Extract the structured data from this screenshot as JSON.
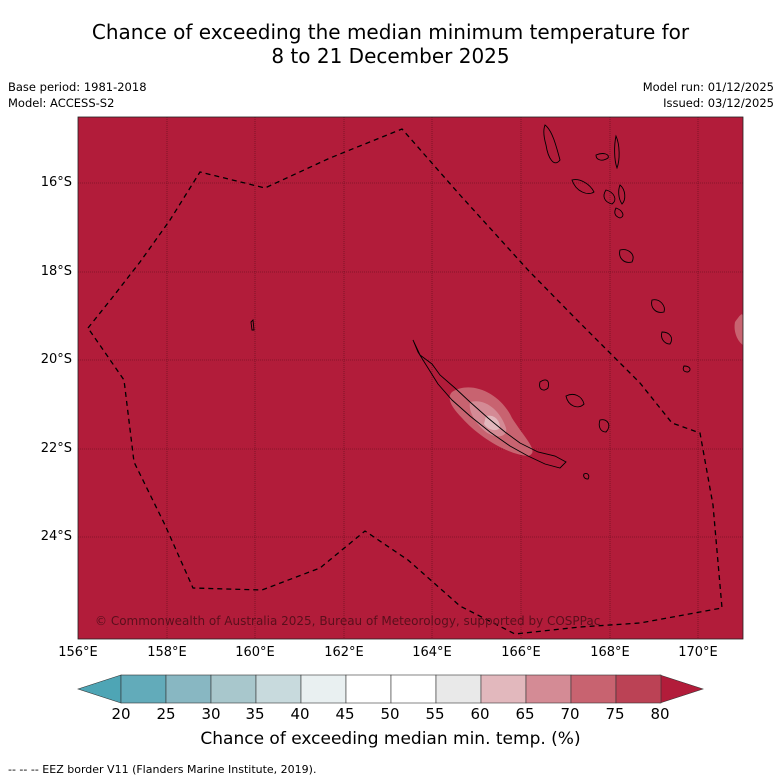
{
  "title": {
    "line1": "Chance of exceeding the median minimum temperature for",
    "line2": "8 to 21 December 2025"
  },
  "meta": {
    "base_period": "Base period: 1981-2018",
    "model": "Model: ACCESS-S2",
    "model_run": "Model run: 01/12/2025",
    "issued": "Issued: 03/12/2025"
  },
  "map": {
    "lat_labels": [
      "16°S",
      "18°S",
      "20°S",
      "22°S",
      "24°S"
    ],
    "lon_labels": [
      "156°E",
      "158°E",
      "160°E",
      "162°E",
      "164°E",
      "166°E",
      "168°E",
      "170°E"
    ],
    "background_color": "#b21c3a",
    "copyright": "© Commonwealth of Australia 2025, Bureau of Meteorology, supported by COSPPac"
  },
  "colorbar": {
    "labels": [
      "20",
      "25",
      "30",
      "35",
      "40",
      "45",
      "50",
      "55",
      "60",
      "65",
      "70",
      "75",
      "80"
    ],
    "colors": [
      "#62abba",
      "#88b7c2",
      "#a8c7cc",
      "#c8dadd",
      "#e9f0f1",
      "#ffffff",
      "#ffffff",
      "#e9e9e9",
      "#e2b8bd",
      "#d48b95",
      "#c86370",
      "#bb4255"
    ],
    "low_extend_color": "#4ea5b5",
    "high_extend_color": "#b21c3a",
    "title": "Chance of exceeding median min. temp. (%)"
  },
  "footer": "--  --  -- EEZ border V11 (Flanders Marine Institute, 2019)."
}
